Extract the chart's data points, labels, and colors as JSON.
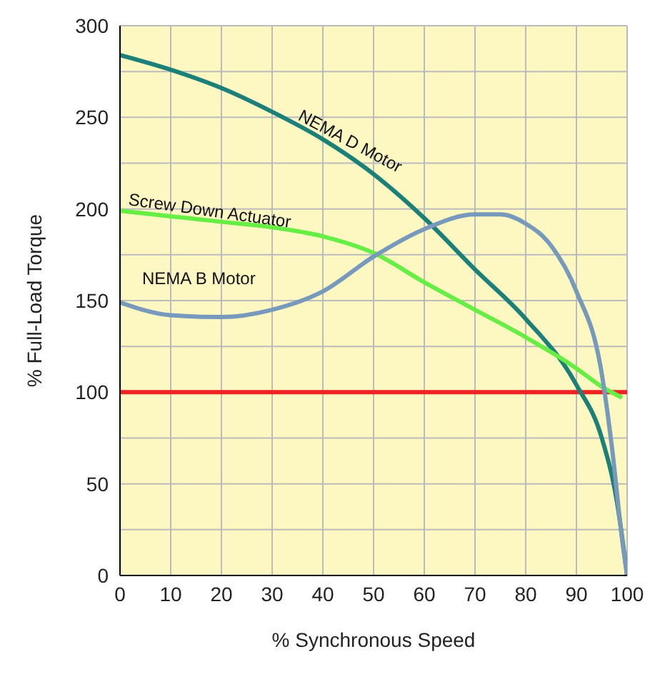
{
  "chart_data": {
    "type": "line",
    "xlabel": "% Synchronous Speed",
    "ylabel": "% Full-Load Torque",
    "xlim": [
      0,
      100
    ],
    "xticks": [
      0,
      10,
      20,
      30,
      40,
      50,
      60,
      70,
      80,
      90,
      100
    ],
    "ylim": [
      0,
      300
    ],
    "yticks": [
      0,
      {
        "value": 25,
        "label": null
      },
      50,
      {
        "value": 75,
        "label": null
      },
      100,
      {
        "value": 125,
        "label": null
      },
      150,
      {
        "value": 175,
        "label": null
      },
      200,
      {
        "value": 225,
        "label": null
      },
      250,
      {
        "value": 275,
        "label": null
      },
      300
    ],
    "grid": true,
    "marker": "none",
    "line_style": "solid",
    "series": [
      {
        "name": "NEMA D Motor",
        "color": "#1a8078",
        "x": [
          0,
          10,
          20,
          30,
          40,
          50,
          60,
          70,
          80,
          90,
          95,
          98,
          100
        ],
        "values": [
          284,
          276,
          266,
          253,
          238,
          219,
          195,
          167,
          140,
          104,
          75,
          40,
          0
        ]
      },
      {
        "name": "Screw Down Actuator",
        "color": "#66ee44",
        "x": [
          0,
          10,
          20,
          30,
          40,
          50,
          60,
          70,
          80,
          90,
          95,
          99
        ],
        "values": [
          199,
          196,
          193,
          190,
          185,
          176,
          160,
          145,
          130,
          113,
          103,
          97
        ]
      },
      {
        "name": "NEMA B Motor",
        "color": "#7799bb",
        "x": [
          0,
          10,
          20,
          30,
          40,
          50,
          60,
          70,
          75,
          80,
          85,
          90,
          95,
          97,
          99,
          100
        ],
        "values": [
          149,
          142,
          141,
          145,
          155,
          174,
          189,
          197,
          197,
          192,
          180,
          155,
          110,
          70,
          20,
          0
        ]
      }
    ],
    "ref_lines": [
      {
        "axis": "y",
        "value": 100,
        "color": "#ee2222"
      }
    ]
  }
}
